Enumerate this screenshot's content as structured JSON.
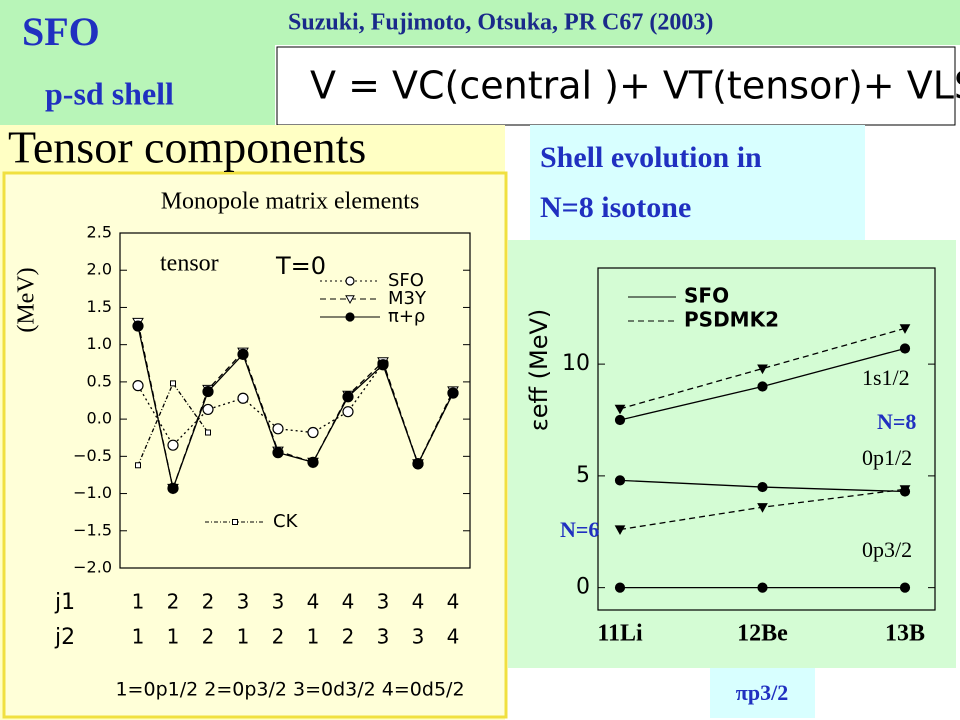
{
  "header": {
    "title": "SFO",
    "subtitle": "p-sd shell",
    "citation": "Suzuki, Fujimoto, Otsuka, PR C67 (2003)",
    "formula": "V = VC(central )+ VT(tensor)+ VLS(LS )"
  },
  "left_title": "Tensor components",
  "right_title": [
    "Shell evolution in",
    "N=8 isotone"
  ],
  "footer_tag": "πp3/2",
  "chart_data": [
    {
      "type": "line",
      "title": "Monopole matrix elements",
      "y_label": "(MeV)",
      "annotations": [
        "tensor",
        "T=0"
      ],
      "row_labels": [
        "j1",
        "j2"
      ],
      "categories": [
        "1",
        "2",
        "2",
        "3",
        "3",
        "4",
        "4",
        "3",
        "4",
        "4"
      ],
      "categories2": [
        "1",
        "1",
        "2",
        "1",
        "2",
        "1",
        "2",
        "3",
        "3",
        "4"
      ],
      "footnote": "1=0p1/2  2=0p3/2  3=0d3/2  4=0d5/2",
      "ylim": [
        -2.0,
        2.5
      ],
      "yticks": [
        2.5,
        {
          "value": 2.0,
          "label": "2.0"
        },
        1.5,
        {
          "value": 1.0,
          "label": "1.0"
        },
        0.5,
        {
          "value": 0.0,
          "label": "0.0"
        },
        {
          "value": -0.5,
          "label": "−0.5"
        },
        {
          "value": -1.0,
          "label": "−1.0"
        },
        {
          "value": -1.5,
          "label": "−1.5"
        },
        {
          "value": -2.0,
          "label": "−2.0"
        }
      ],
      "series": [
        {
          "name": "SFO",
          "color": "#000000",
          "marker": "circle-open",
          "dash": "2,3",
          "values": [
            0.45,
            -0.35,
            0.13,
            0.28,
            -0.13,
            -0.18,
            0.1,
            0.75,
            -0.6,
            0.35
          ]
        },
        {
          "name": "M3Y",
          "color": "#000000",
          "marker": "triangle-open",
          "dash": "6,4",
          "values": [
            1.3,
            -0.93,
            0.4,
            0.9,
            -0.43,
            -0.58,
            0.32,
            0.77,
            -0.6,
            0.38
          ]
        },
        {
          "name": "π+ρ",
          "color": "#000000",
          "marker": "circle-filled",
          "dash": "none",
          "values": [
            1.25,
            -0.93,
            0.37,
            0.87,
            -0.45,
            -0.58,
            0.3,
            0.73,
            -0.6,
            0.35
          ]
        },
        {
          "name": "CK",
          "color": "#000000",
          "marker": "square-open",
          "dash": "4,2,1,2",
          "values": [
            -0.62,
            0.48,
            -0.18,
            null,
            null,
            null,
            null,
            null,
            null,
            null
          ]
        }
      ]
    },
    {
      "type": "line",
      "y_label": "εeff (MeV)",
      "categories": [
        "11Li",
        "12Be",
        "13B"
      ],
      "ylim": [
        -1,
        14.3
      ],
      "yticks": [
        0,
        5,
        10
      ],
      "annotations": [
        "1s1/2",
        "0p1/2",
        "0p3/2",
        "N=8",
        "N=6"
      ],
      "series": [
        {
          "name": "SFO",
          "color": "#000000",
          "marker": "circle-filled",
          "dash": "none",
          "lines": [
            [
              7.5,
              9.0,
              10.7
            ],
            [
              4.8,
              4.5,
              4.3
            ],
            [
              0,
              0,
              0
            ]
          ]
        },
        {
          "name": "PSDMK2",
          "color": "#000000",
          "marker": "triangle-filled",
          "dash": "6,4",
          "lines": [
            [
              8.0,
              9.8,
              11.6
            ],
            [
              2.6,
              3.6,
              4.4
            ]
          ]
        }
      ]
    }
  ]
}
